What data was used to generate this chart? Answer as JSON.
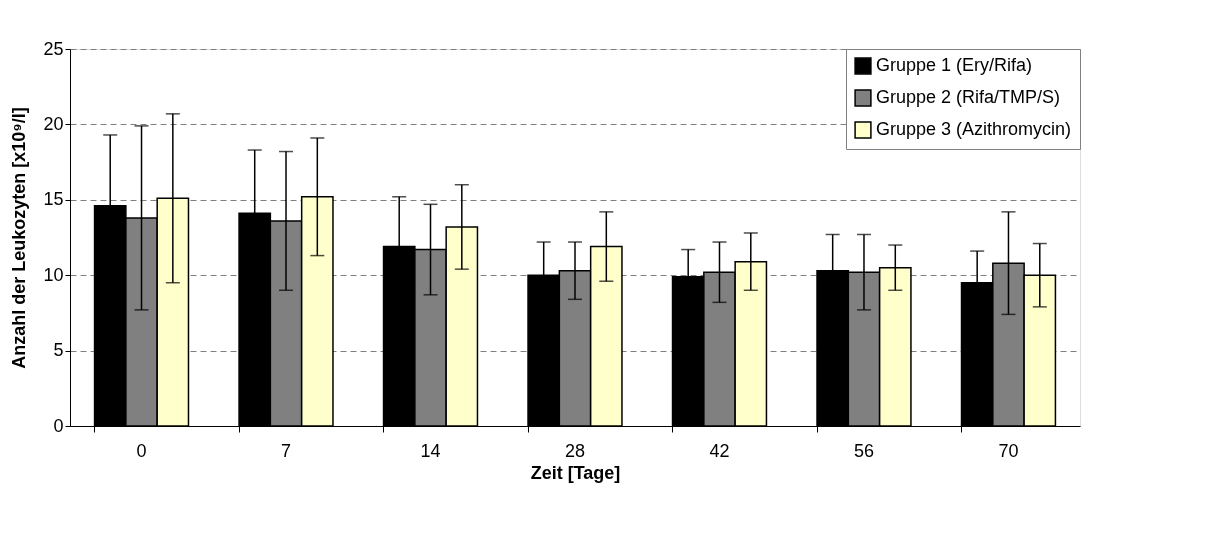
{
  "chart_data": {
    "type": "bar",
    "xlabel": "Zeit [Tage]",
    "ylabel": "Anzahl der Leukozyten [x10⁹/l]",
    "categories": [
      "0",
      "7",
      "14",
      "28",
      "42",
      "56",
      "70"
    ],
    "series": [
      {
        "name": "Gruppe 1 (Ery/Rifa)",
        "color": "#000000",
        "values": [
          14.6,
          14.1,
          11.9,
          10.0,
          9.9,
          10.3,
          9.5
        ],
        "errors": [
          4.7,
          4.2,
          3.3,
          2.2,
          1.8,
          2.4,
          2.1
        ]
      },
      {
        "name": "Gruppe 2 (Rifa/TMP/S)",
        "color": "#808080",
        "values": [
          13.8,
          13.6,
          11.7,
          10.3,
          10.2,
          10.2,
          10.8
        ],
        "errors": [
          6.1,
          4.6,
          3.0,
          1.9,
          2.0,
          2.5,
          3.4
        ]
      },
      {
        "name": "Gruppe 3 (Azithromycin)",
        "color": "#ffffcc",
        "values": [
          15.1,
          15.2,
          13.2,
          11.9,
          10.9,
          10.5,
          10.0
        ],
        "errors": [
          5.6,
          3.9,
          2.8,
          2.3,
          1.9,
          1.5,
          2.1
        ]
      }
    ],
    "ylim": [
      0,
      25
    ],
    "yticks": [
      0,
      5,
      10,
      15,
      20,
      25
    ],
    "grid": "y",
    "legend": "top right"
  }
}
